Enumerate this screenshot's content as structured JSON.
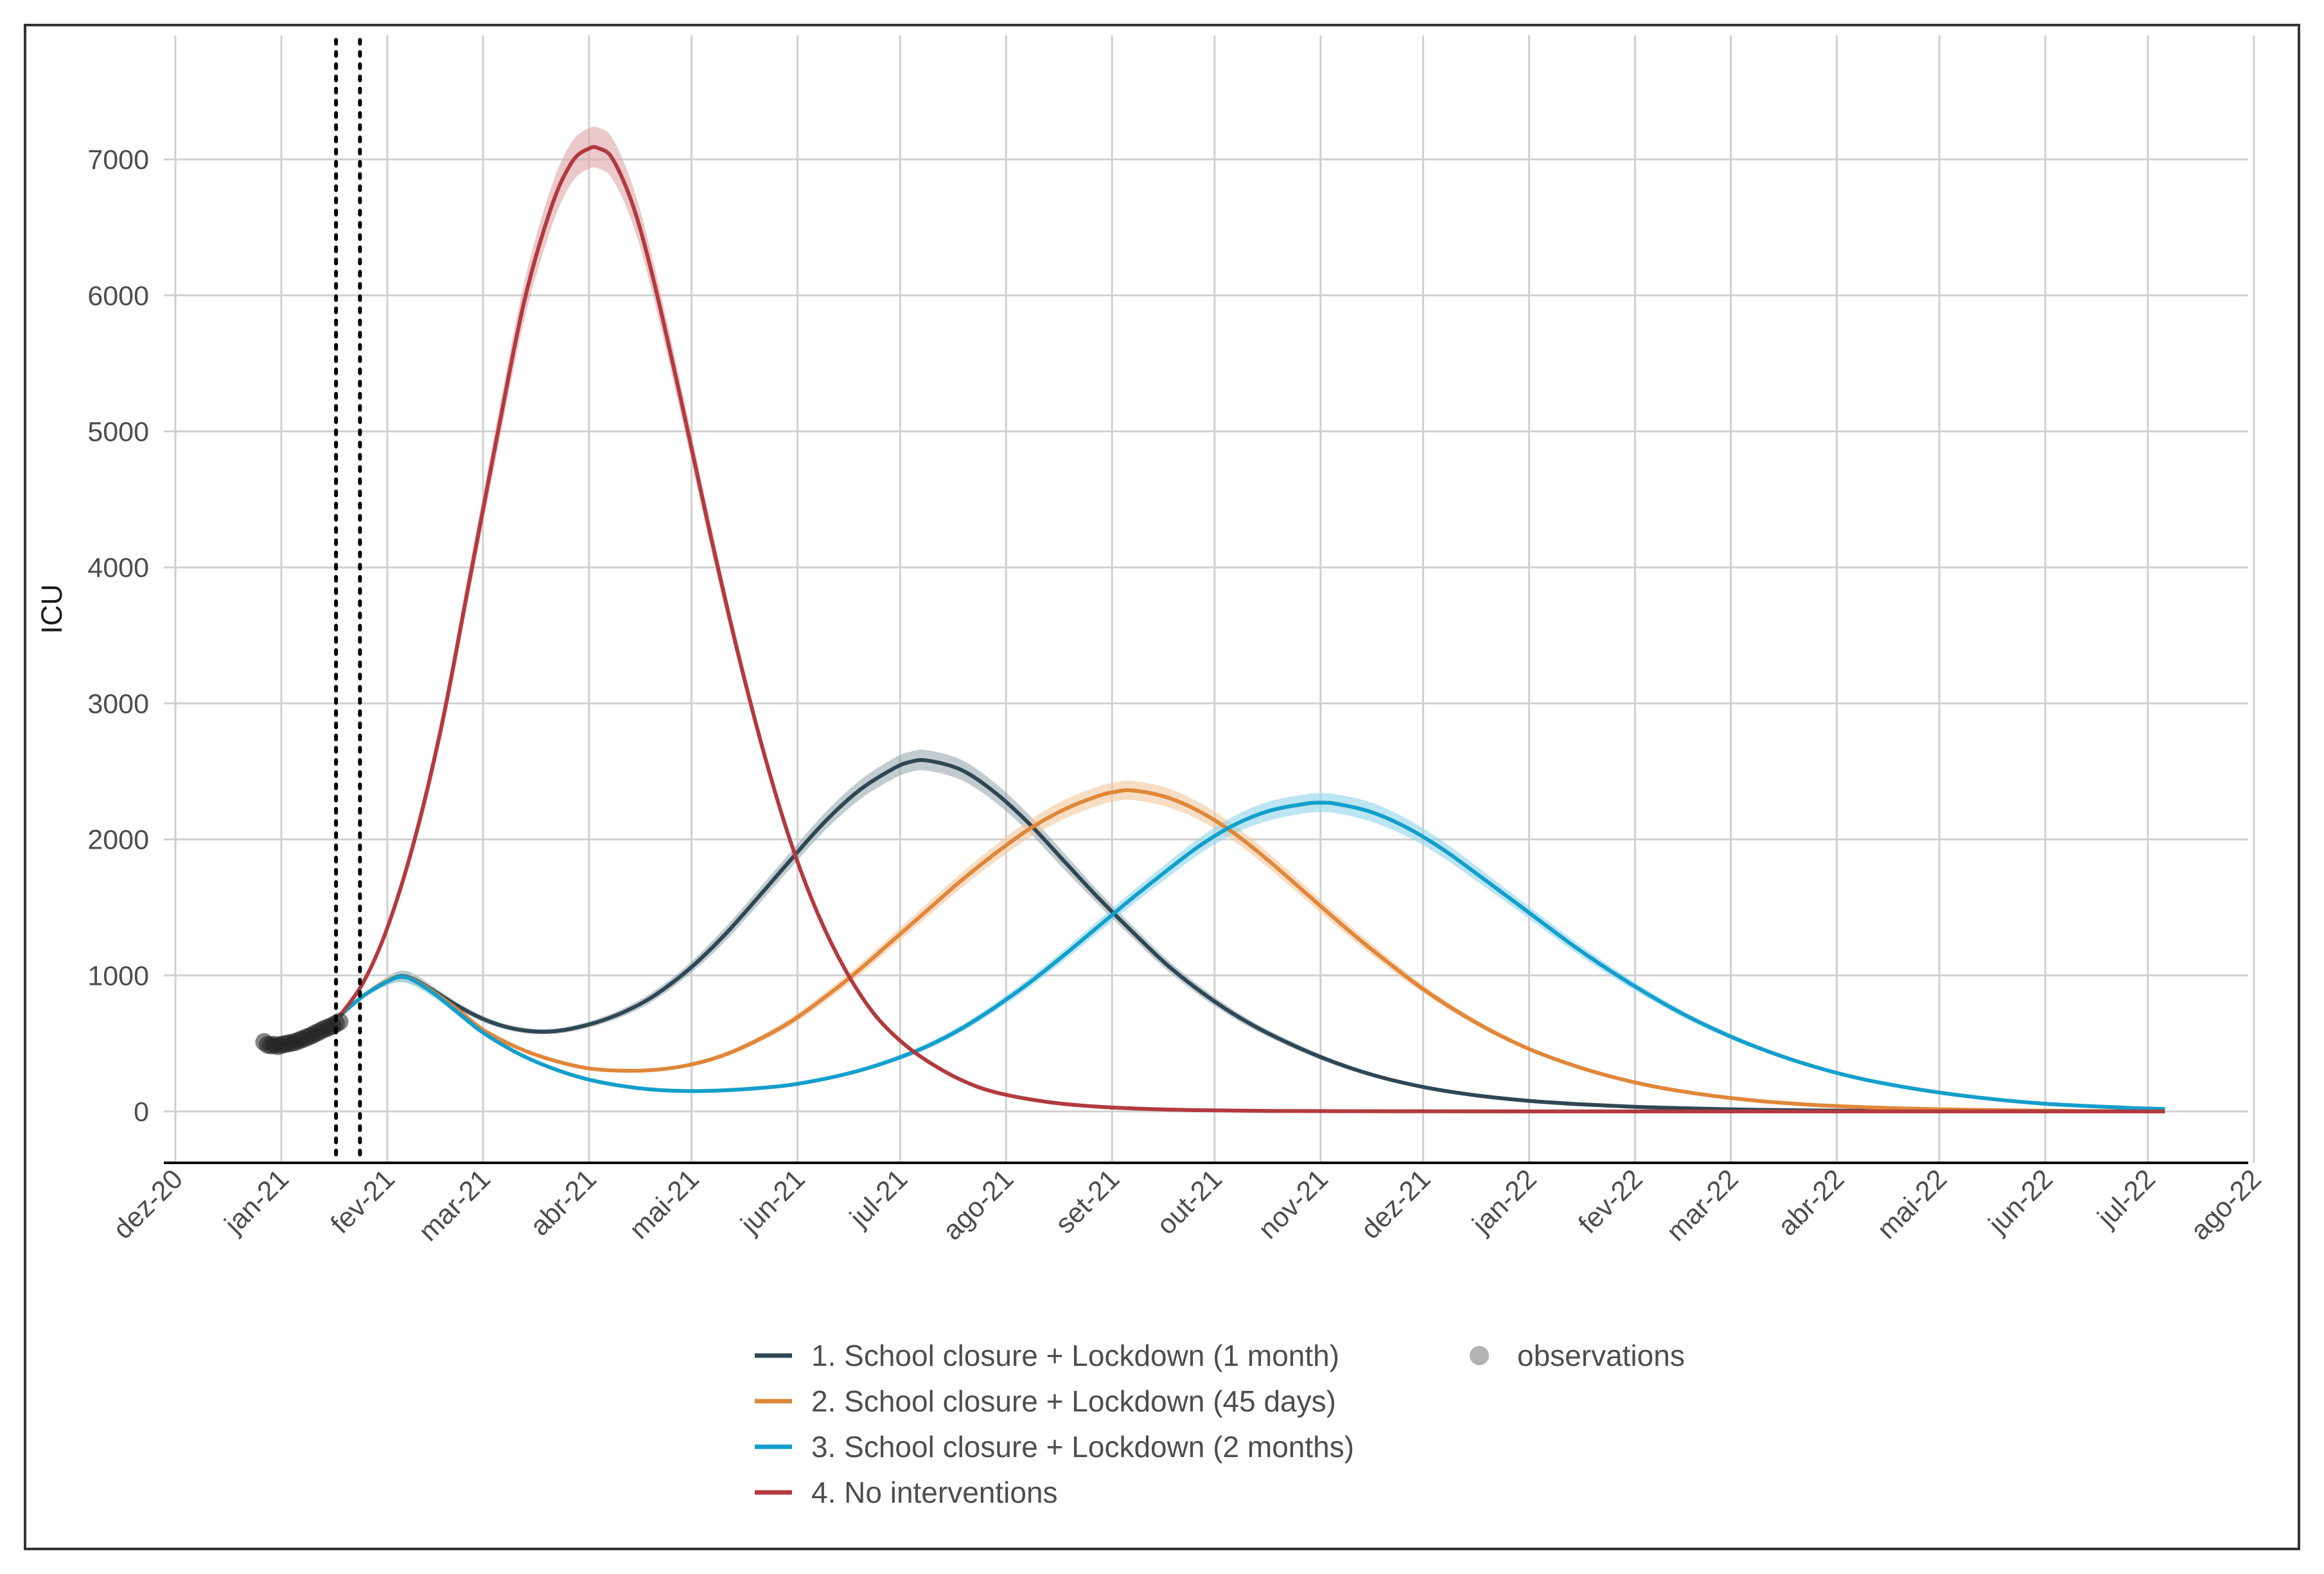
{
  "chart_data": {
    "type": "line",
    "title": "",
    "xlabel": "",
    "ylabel": "ICU",
    "ylim": [
      -380,
      7900
    ],
    "xlim_days": [
      -10,
      585
    ],
    "x_unit": "days since 2020-12-01",
    "x_ticks": [
      {
        "label": "dez-20",
        "day": 0
      },
      {
        "label": "jan-21",
        "day": 31
      },
      {
        "label": "fev-21",
        "day": 62
      },
      {
        "label": "mar-21",
        "day": 90
      },
      {
        "label": "abr-21",
        "day": 121
      },
      {
        "label": "mai-21",
        "day": 151
      },
      {
        "label": "jun-21",
        "day": 182
      },
      {
        "label": "jul-21",
        "day": 212
      },
      {
        "label": "ago-21",
        "day": 243
      },
      {
        "label": "set-21",
        "day": 274
      },
      {
        "label": "out-21",
        "day": 304
      },
      {
        "label": "nov-21",
        "day": 335
      },
      {
        "label": "dez-21",
        "day": 365
      },
      {
        "label": "jan-22",
        "day": 396
      },
      {
        "label": "fev-22",
        "day": 427
      },
      {
        "label": "mar-22",
        "day": 455
      },
      {
        "label": "abr-22",
        "day": 486
      },
      {
        "label": "mai-22",
        "day": 516
      },
      {
        "label": "jun-22",
        "day": 547
      },
      {
        "label": "jul-22",
        "day": 577
      },
      {
        "label": "ago-22",
        "day": 608
      }
    ],
    "y_ticks": [
      0,
      1000,
      2000,
      3000,
      4000,
      5000,
      6000,
      7000
    ],
    "vlines_days": [
      47,
      54
    ],
    "series": [
      {
        "name": "1. School closure + Lockdown (1 month)",
        "color": "#2e4753",
        "band_color": "#9aaab0",
        "x": [
          48,
          55,
          62,
          66,
          70,
          76,
          83,
          90,
          97,
          104,
          111,
          118,
          125,
          132,
          140,
          150,
          160,
          170,
          180,
          190,
          200,
          210,
          215,
          220,
          230,
          240,
          250,
          260,
          270,
          280,
          290,
          300,
          310,
          320,
          335,
          350,
          365,
          380,
          395,
          410,
          425,
          440,
          460,
          480,
          500,
          520,
          545,
          570,
          582
        ],
        "y": [
          700,
          850,
          960,
          995,
          970,
          880,
          770,
          680,
          620,
          590,
          590,
          620,
          670,
          740,
          850,
          1040,
          1280,
          1560,
          1850,
          2130,
          2360,
          2520,
          2570,
          2580,
          2510,
          2340,
          2110,
          1840,
          1570,
          1320,
          1080,
          880,
          710,
          570,
          400,
          270,
          180,
          120,
          80,
          54,
          36,
          24,
          13,
          7,
          4,
          2,
          1,
          0,
          0
        ],
        "band": [
          0,
          15,
          30,
          40,
          40,
          30,
          25,
          22,
          20,
          20,
          20,
          22,
          25,
          30,
          35,
          40,
          50,
          55,
          60,
          65,
          70,
          75,
          75,
          75,
          75,
          70,
          65,
          60,
          50,
          45,
          40,
          35,
          30,
          25,
          20,
          15,
          10,
          8,
          6,
          5,
          4,
          3,
          2,
          1,
          1,
          0,
          0,
          0,
          0
        ]
      },
      {
        "name": "2. School closure + Lockdown (45 days)",
        "color": "#e0873a",
        "band_color": "#f2c79d",
        "x": [
          48,
          55,
          62,
          66,
          70,
          76,
          83,
          90,
          100,
          110,
          120,
          130,
          140,
          150,
          160,
          170,
          180,
          190,
          200,
          210,
          220,
          230,
          240,
          250,
          260,
          270,
          275,
          280,
          290,
          300,
          310,
          320,
          330,
          340,
          350,
          365,
          380,
          395,
          410,
          425,
          440,
          460,
          480,
          500,
          520,
          545,
          570,
          582
        ],
        "y": [
          700,
          850,
          960,
          990,
          965,
          870,
          740,
          600,
          470,
          380,
          320,
          300,
          305,
          340,
          410,
          520,
          660,
          840,
          1040,
          1260,
          1480,
          1700,
          1900,
          2080,
          2220,
          2320,
          2350,
          2360,
          2310,
          2200,
          2040,
          1840,
          1620,
          1400,
          1190,
          900,
          660,
          470,
          330,
          225,
          150,
          85,
          47,
          26,
          14,
          6,
          2,
          1
        ],
        "band": [
          0,
          15,
          30,
          40,
          40,
          30,
          25,
          20,
          15,
          12,
          12,
          12,
          12,
          15,
          18,
          22,
          28,
          34,
          40,
          45,
          50,
          55,
          60,
          65,
          70,
          70,
          70,
          70,
          70,
          65,
          60,
          55,
          50,
          45,
          40,
          30,
          22,
          16,
          12,
          8,
          6,
          4,
          3,
          2,
          1,
          0,
          0,
          0
        ]
      },
      {
        "name": "3. School closure + Lockdown (2 months)",
        "color": "#139fcc",
        "band_color": "#8fd3ea",
        "x": [
          48,
          55,
          62,
          66,
          70,
          76,
          83,
          90,
          100,
          110,
          120,
          130,
          140,
          150,
          160,
          170,
          180,
          190,
          200,
          210,
          220,
          230,
          240,
          250,
          260,
          270,
          280,
          290,
          300,
          310,
          320,
          330,
          335,
          340,
          350,
          360,
          370,
          380,
          395,
          410,
          425,
          440,
          455,
          470,
          485,
          500,
          520,
          545,
          570,
          582
        ],
        "y": [
          700,
          850,
          955,
          990,
          960,
          860,
          720,
          580,
          430,
          320,
          240,
          190,
          160,
          150,
          155,
          170,
          195,
          240,
          300,
          380,
          480,
          610,
          770,
          950,
          1150,
          1360,
          1570,
          1770,
          1960,
          2110,
          2210,
          2260,
          2270,
          2260,
          2200,
          2090,
          1940,
          1760,
          1480,
          1200,
          950,
          730,
          550,
          405,
          290,
          205,
          125,
          60,
          28,
          18
        ],
        "band": [
          0,
          15,
          30,
          40,
          40,
          30,
          25,
          20,
          12,
          10,
          8,
          8,
          8,
          8,
          8,
          10,
          10,
          12,
          15,
          18,
          22,
          26,
          30,
          35,
          40,
          45,
          50,
          55,
          60,
          65,
          70,
          70,
          70,
          70,
          70,
          65,
          60,
          55,
          45,
          40,
          32,
          25,
          20,
          15,
          10,
          8,
          5,
          3,
          2,
          1
        ]
      },
      {
        "name": "4. No interventions",
        "color": "#b23a3f",
        "band_color": "#dea5a8",
        "x": [
          48,
          55,
          62,
          70,
          78,
          86,
          94,
          102,
          110,
          116,
          121,
          124,
          128,
          134,
          140,
          148,
          156,
          164,
          172,
          180,
          188,
          196,
          204,
          212,
          220,
          230,
          240,
          255,
          270,
          285,
          300,
          320,
          340,
          360,
          400,
          450,
          500,
          582
        ],
        "y": [
          700,
          950,
          1350,
          2000,
          2850,
          3900,
          4950,
          5950,
          6650,
          6980,
          7080,
          7080,
          7000,
          6650,
          6100,
          5220,
          4300,
          3430,
          2650,
          1980,
          1450,
          1040,
          730,
          520,
          370,
          230,
          140,
          70,
          35,
          18,
          9,
          4,
          2,
          1,
          0,
          0,
          0,
          0
        ],
        "band": [
          0,
          20,
          35,
          60,
          80,
          100,
          120,
          140,
          150,
          150,
          150,
          150,
          150,
          140,
          130,
          110,
          90,
          70,
          55,
          40,
          30,
          22,
          16,
          10,
          8,
          5,
          3,
          2,
          1,
          0,
          0,
          0,
          0,
          0,
          0,
          0,
          0,
          0
        ]
      }
    ],
    "observations": {
      "name": "observations",
      "color": "#222222",
      "legend_color": "#b3b3b3",
      "x": [
        26,
        27,
        28,
        29,
        30,
        31,
        32,
        33,
        34,
        35,
        36,
        37,
        38,
        39,
        40,
        41,
        42,
        43,
        44,
        45,
        46,
        47,
        48
      ],
      "y": [
        510,
        490,
        485,
        490,
        480,
        490,
        495,
        500,
        505,
        510,
        520,
        530,
        540,
        550,
        560,
        575,
        585,
        600,
        610,
        620,
        630,
        645,
        660
      ]
    },
    "legend_position": "bottom"
  }
}
